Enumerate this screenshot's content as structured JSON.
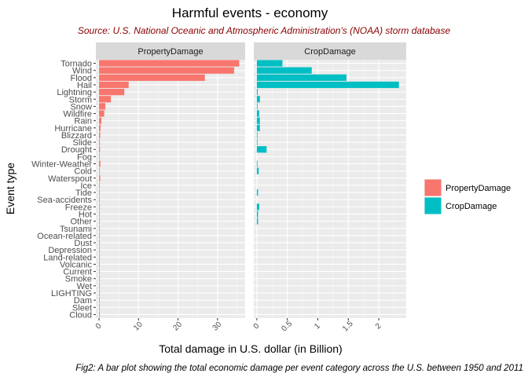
{
  "chart_data": {
    "type": "bar",
    "orientation": "horizontal",
    "title": "Harmful events - economy",
    "subtitle": "Source: U.S. National Oceanic and Atmospheric Administration's (NOAA) storm database",
    "caption": "Fig2: A bar plot showing the total economic damage per event category across the U.S. between 1950 and 2011",
    "xlabel": "Total damage in U.S. dollar (in Billion)",
    "ylabel": "Event type",
    "grid": true,
    "legend_position": "right",
    "categories": [
      "Tornado",
      "Wind",
      "Flood",
      "Hail",
      "Lightning",
      "Storm",
      "Snow",
      "Wildfire",
      "Rain",
      "Hurricane",
      "Blizzard",
      "Slide",
      "Drought",
      "Fog",
      "Winter-Weather",
      "Cold",
      "Waterspout",
      "Ice",
      "Tide",
      "Sea-accidents",
      "Freeze",
      "Hot",
      "Other",
      "Tsunami",
      "Ocean-related",
      "Dust",
      "Depression",
      "Land-related",
      "Volcanic",
      "Current",
      "Smoke",
      "Wet",
      "LIGHTING",
      "Dam",
      "Sleet",
      "Cloud"
    ],
    "panels": [
      {
        "name": "PropertyDamage",
        "color": "#F8766D",
        "xlim": [
          -0.8,
          37
        ],
        "ticks": [
          0,
          10,
          20,
          30
        ],
        "tick_labels": [
          "0",
          "10",
          "20",
          "30"
        ],
        "values": [
          35.5,
          34.2,
          26.8,
          7.5,
          6.4,
          3.0,
          1.6,
          1.3,
          0.6,
          0.4,
          0.3,
          0.2,
          0.25,
          0.15,
          0.35,
          0.1,
          0.3,
          0.02,
          0.05,
          0.02,
          0.05,
          0.02,
          0.05,
          0.01,
          0.01,
          0.01,
          0.01,
          0.01,
          0.01,
          0.005,
          0.005,
          0.005,
          0.003,
          0.003,
          0.003,
          0.002
        ]
      },
      {
        "name": "CropDamage",
        "color": "#00BFC4",
        "xlim": [
          -0.05,
          2.45
        ],
        "ticks": [
          0,
          0.5,
          1,
          1.5,
          2
        ],
        "tick_labels": [
          "0",
          "0.5",
          "1",
          "1.5",
          "2"
        ],
        "values": [
          0.42,
          0.9,
          1.47,
          2.33,
          0.015,
          0.05,
          0.01,
          0.04,
          0.05,
          0.05,
          0.01,
          0.005,
          0.16,
          0.0,
          0.01,
          0.03,
          0.0,
          0.0,
          0.02,
          0.0,
          0.04,
          0.02,
          0.02,
          0.0,
          0.0,
          0.0,
          0.0,
          0.0,
          0.0,
          0.0,
          0.0,
          0.0,
          0.0,
          0.0,
          0.0,
          0.0
        ]
      }
    ]
  }
}
